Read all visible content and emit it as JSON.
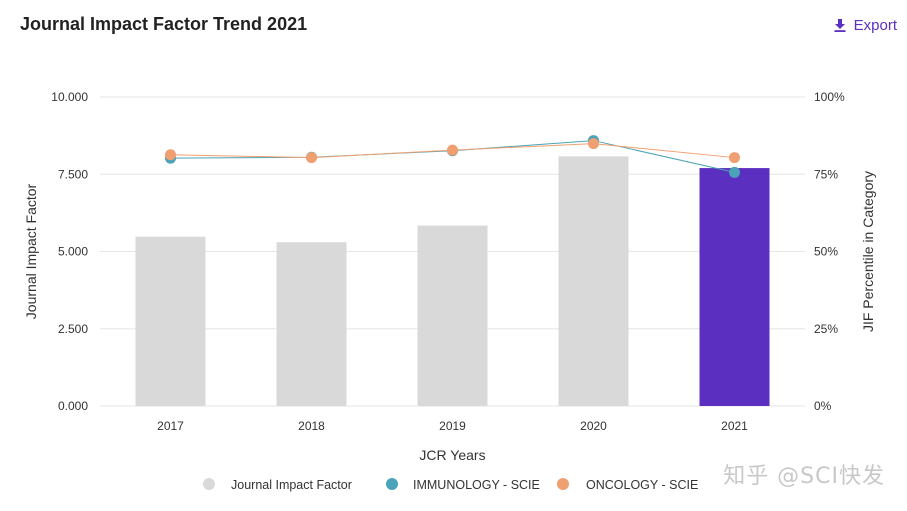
{
  "header": {
    "title": "Journal Impact Factor Trend 2021",
    "export_label": "Export",
    "export_icon": "download-icon"
  },
  "watermark": "知乎 @SCI快发",
  "colors": {
    "bar_default": "#d9d9d9",
    "bar_highlight": "#5b2fc0",
    "immunology": "#4aa3b8",
    "oncology": "#f0a070",
    "grid": "#e6e6e6",
    "accent": "#5b2fc0"
  },
  "chart_data": {
    "type": "bar",
    "title": "Journal Impact Factor Trend 2021",
    "xlabel": "JCR Years",
    "ylabel": "Journal Impact Factor",
    "y2label": "JIF Percentile in Category",
    "categories": [
      "2017",
      "2018",
      "2019",
      "2020",
      "2021"
    ],
    "ylim": [
      0,
      10
    ],
    "y_ticks": [
      "0.000",
      "2.500",
      "5.000",
      "7.500",
      "10.000"
    ],
    "y_tick_values": [
      0,
      2.5,
      5,
      7.5,
      10
    ],
    "y2lim": [
      0,
      100
    ],
    "y2_ticks": [
      "0%",
      "25%",
      "50%",
      "75%",
      "100%"
    ],
    "y2_tick_values": [
      0,
      25,
      50,
      75,
      100
    ],
    "highlight_category": "2021",
    "grid": true,
    "legend_position": "bottom",
    "series": [
      {
        "name": "Journal Impact Factor",
        "kind": "bar",
        "axis": "left",
        "values": [
          5.48,
          5.3,
          5.84,
          8.08,
          7.7
        ]
      },
      {
        "name": "IMMUNOLOGY - SCIE",
        "kind": "line",
        "axis": "right",
        "values": [
          80.2,
          80.5,
          82.6,
          85.9,
          75.6
        ]
      },
      {
        "name": "ONCOLOGY - SCIE",
        "kind": "line",
        "axis": "right",
        "values": [
          81.3,
          80.4,
          82.8,
          84.9,
          80.4
        ]
      }
    ]
  }
}
